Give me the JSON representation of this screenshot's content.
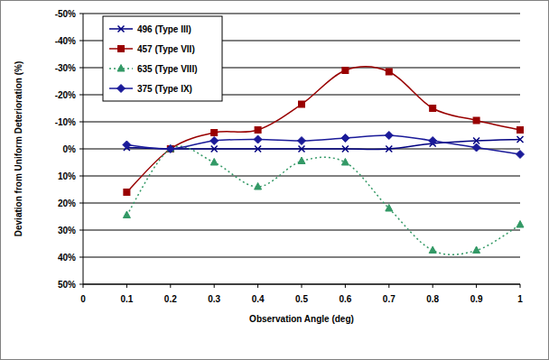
{
  "chart_data": {
    "type": "line",
    "x_label": "Observation Angle (deg)",
    "y_label": "Deviation from Uniform Deterioration (%)",
    "x": [
      0.1,
      0.2,
      0.3,
      0.4,
      0.5,
      0.6,
      0.7,
      0.8,
      0.9,
      1.0
    ],
    "xlim": [
      0,
      1
    ],
    "xticks": [
      0,
      0.1,
      0.2,
      0.3,
      0.4,
      0.5,
      0.6,
      0.7,
      0.8,
      0.9,
      1
    ],
    "ylim": [
      -50,
      50
    ],
    "yticks": [
      {
        "value": -50,
        "label": "-50%"
      },
      {
        "value": -40,
        "label": "-40%"
      },
      {
        "value": -30,
        "label": "-30%"
      },
      {
        "value": -20,
        "label": "-20%"
      },
      {
        "value": -10,
        "label": "-10%"
      },
      {
        "value": 0,
        "label": "0%"
      },
      {
        "value": 10,
        "label": "10%"
      },
      {
        "value": 20,
        "label": "20%"
      },
      {
        "value": 30,
        "label": "30%"
      },
      {
        "value": 40,
        "label": "40%"
      },
      {
        "value": 50,
        "label": "50%"
      }
    ],
    "grid": true,
    "legend": "upper-left",
    "series": [
      {
        "name": "496 (Type III)",
        "color": "#000080",
        "marker": "x",
        "line_style": "solid",
        "values": [
          -0.5,
          0,
          0,
          0,
          0,
          0,
          0,
          -2,
          -3,
          -3.5
        ]
      },
      {
        "name": "457 (Type VII)",
        "color": "#990000",
        "marker": "square",
        "line_style": "solid",
        "values": [
          16,
          0,
          -6,
          -7,
          -16.5,
          -29,
          -28.5,
          -15,
          -10.5,
          -7
        ]
      },
      {
        "name": "635 (Type VIII)",
        "color": "#339966",
        "marker": "triangle",
        "line_style": "dotted",
        "values": [
          24.5,
          0,
          5,
          14,
          4.5,
          5,
          22,
          37.5,
          37.5,
          28
        ]
      },
      {
        "name": "375 (Type IX)",
        "color": "#1a1a99",
        "marker": "diamond",
        "line_style": "solid",
        "values": [
          -1.5,
          0,
          -3,
          -3.5,
          -3,
          -4,
          -5,
          -3,
          -0.5,
          2
        ]
      }
    ]
  }
}
